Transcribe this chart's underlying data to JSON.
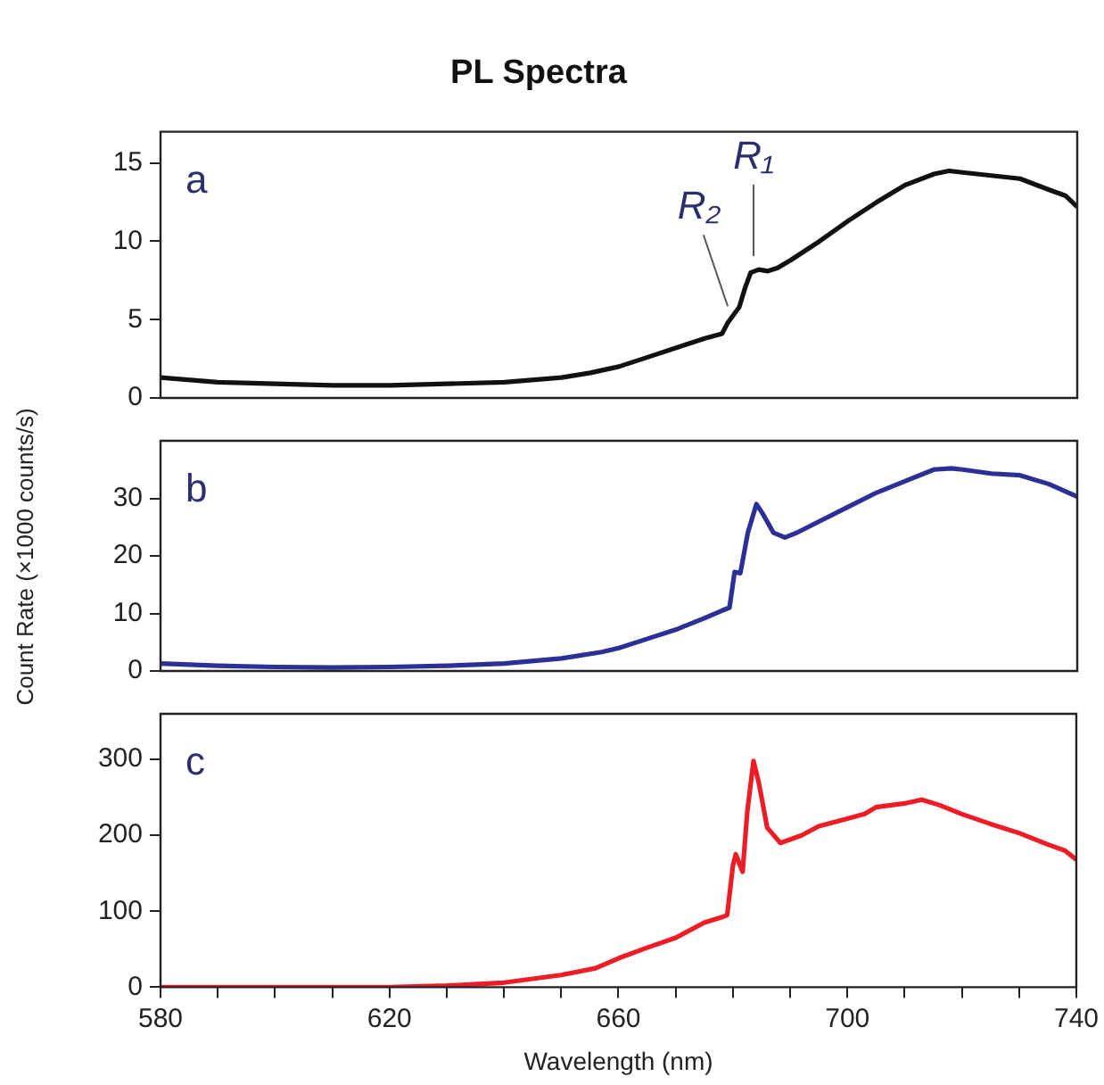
{
  "chart_data": [
    {
      "type": "line",
      "title": "PL Spectra",
      "annotations": [
        "a",
        {
          "text": "R₂",
          "x": 679,
          "y": 5.4
        },
        {
          "text": "R₁",
          "x": 683.5,
          "y": 8.6
        }
      ],
      "xlim": [
        580,
        740
      ],
      "ylim": [
        0,
        17
      ],
      "yticks": [
        0,
        5,
        10,
        15
      ],
      "tick_labels": "y",
      "grid": false,
      "legend": false,
      "series": [
        {
          "color": "#111111",
          "x": [
            580,
            590,
            600,
            610,
            620,
            630,
            640,
            650,
            655,
            660,
            665,
            670,
            675,
            678,
            679,
            680,
            681,
            682,
            683,
            684.4,
            686,
            687.7,
            690,
            695,
            700,
            705,
            710,
            715,
            717.6,
            720,
            725,
            730,
            735,
            738,
            740
          ],
          "values": [
            1.3,
            1.0,
            0.9,
            0.8,
            0.8,
            0.9,
            1.0,
            1.3,
            1.6,
            2.0,
            2.6,
            3.2,
            3.8,
            4.1,
            4.8,
            5.3,
            5.8,
            7.0,
            8.0,
            8.2,
            8.1,
            8.3,
            8.8,
            10.0,
            11.3,
            12.5,
            13.6,
            14.3,
            14.5,
            14.4,
            14.2,
            14.0,
            13.3,
            12.9,
            12.2
          ]
        }
      ]
    },
    {
      "type": "line",
      "ylabel": "Count Rate (×1000 counts/s)",
      "annotations": [
        "b"
      ],
      "xlim": [
        580,
        740
      ],
      "ylim": [
        0,
        40
      ],
      "yticks": [
        0,
        10,
        20,
        30
      ],
      "tick_labels": "y",
      "grid": false,
      "legend": false,
      "series": [
        {
          "color": "#2b2f96",
          "x": [
            580,
            590,
            600,
            610,
            620,
            630,
            640,
            650,
            657,
            660,
            665,
            670,
            675,
            678,
            679.3,
            680.2,
            681.2,
            682.5,
            684,
            685,
            687,
            689,
            691,
            695,
            700,
            705,
            710,
            715,
            718,
            720,
            725,
            730,
            735,
            740
          ],
          "values": [
            1.3,
            0.9,
            0.7,
            0.6,
            0.7,
            0.9,
            1.3,
            2.2,
            3.3,
            4.0,
            5.6,
            7.2,
            9.2,
            10.5,
            11,
            17.2,
            17,
            24,
            29,
            27.5,
            24,
            23.2,
            24,
            26,
            28.5,
            31,
            33,
            35,
            35.2,
            35,
            34.3,
            34,
            32.5,
            30.3
          ]
        }
      ]
    },
    {
      "type": "line",
      "xlabel": "Wavelength (nm)",
      "annotations": [
        "c"
      ],
      "xlim": [
        580,
        740
      ],
      "xticks": [
        580,
        {
          "value": 590,
          "label": null
        },
        {
          "value": 600,
          "label": null
        },
        {
          "value": 610,
          "label": null
        },
        620,
        {
          "value": 630,
          "label": null
        },
        {
          "value": 640,
          "label": null
        },
        {
          "value": 650,
          "label": null
        },
        660,
        {
          "value": 670,
          "label": null
        },
        {
          "value": 680,
          "label": null
        },
        {
          "value": 690,
          "label": null
        },
        700,
        {
          "value": 710,
          "label": null
        },
        {
          "value": 720,
          "label": null
        },
        {
          "value": 730,
          "label": null
        },
        740
      ],
      "ylim": [
        0,
        360
      ],
      "yticks": [
        0,
        100,
        200,
        300
      ],
      "grid": false,
      "legend": false,
      "series": [
        {
          "color": "#ee1c25",
          "x": [
            580,
            600,
            620,
            630,
            640,
            650,
            656,
            660,
            665,
            670,
            675,
            678,
            679,
            680,
            680.5,
            681.7,
            682.5,
            683.6,
            684.5,
            686,
            688.3,
            692,
            695,
            700,
            703,
            705,
            710,
            713,
            716,
            720,
            725,
            730,
            735,
            738,
            740
          ],
          "values": [
            0,
            0,
            0,
            2,
            6,
            16,
            25,
            38,
            52,
            65,
            85,
            92,
            95,
            160,
            175,
            152,
            230,
            298,
            270,
            210,
            190,
            200,
            212,
            222,
            228,
            237,
            242,
            247,
            240,
            228,
            215,
            203,
            188,
            180,
            168
          ]
        }
      ]
    }
  ]
}
